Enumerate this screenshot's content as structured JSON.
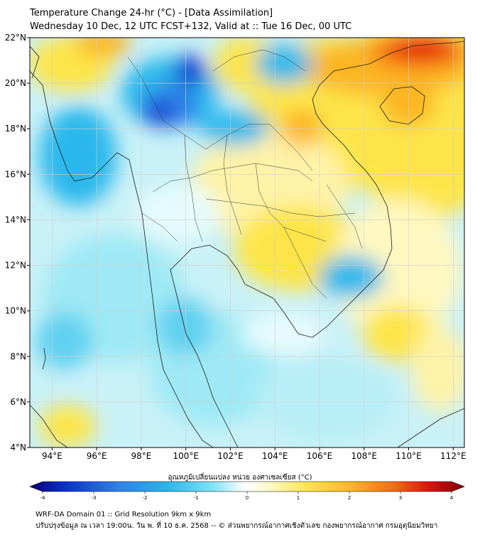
{
  "header": {
    "title_line1": "Temperature Change 24-hr (°C) - [Data Assimilation]",
    "title_line2": "Wednesday 10 Dec, 12 UTC FCST+132, Valid at :: Tue 16 Dec, 00 UTC"
  },
  "map": {
    "lon_range": [
      93,
      112.5
    ],
    "lat_range": [
      4,
      22
    ],
    "lat_ticks": [
      "22°N",
      "20°N",
      "18°N",
      "16°N",
      "14°N",
      "12°N",
      "10°N",
      "8°N",
      "6°N",
      "4°N"
    ],
    "lon_ticks": [
      "94°E",
      "96°E",
      "98°E",
      "100°E",
      "102°E",
      "104°E",
      "106°E",
      "108°E",
      "110°E",
      "112°E"
    ],
    "lat_values": [
      22,
      20,
      18,
      16,
      14,
      12,
      10,
      8,
      6,
      4
    ],
    "lon_values": [
      94,
      96,
      98,
      100,
      102,
      104,
      106,
      108,
      110,
      112
    ],
    "gridlines": true
  },
  "colorbar": {
    "label": "อุณหภูมิเปลี่ยนแปลง หน่วย องศาเซลเซียส (°C)",
    "ticks": [
      "-4",
      "-3",
      "-2",
      "-1",
      "0",
      "1",
      "2",
      "3",
      "4"
    ],
    "range": [
      -4,
      4
    ],
    "colors": [
      "#08006e",
      "#0a2fd0",
      "#2f7fe8",
      "#2ab8ec",
      "#7fe3f5",
      "#e6fbfd",
      "#ffffff",
      "#fff9c8",
      "#fde54a",
      "#fbb524",
      "#f46a10",
      "#e10f0f",
      "#7a0008"
    ]
  },
  "footer": {
    "line1": "WRF-DA Domain 01 :: Grid Resolution 9km x 9km",
    "line2": "ปรับปรุงข้อมูล ณ เวลา 19:00น. วัน พ. ที่ 10 ธ.ค. 2568 -- © ส่วนพยากรณ์อากาศเชิงตัวเลข กองพยากรณ์อากาศ กรมอุตุนิยมวิทยา"
  }
}
